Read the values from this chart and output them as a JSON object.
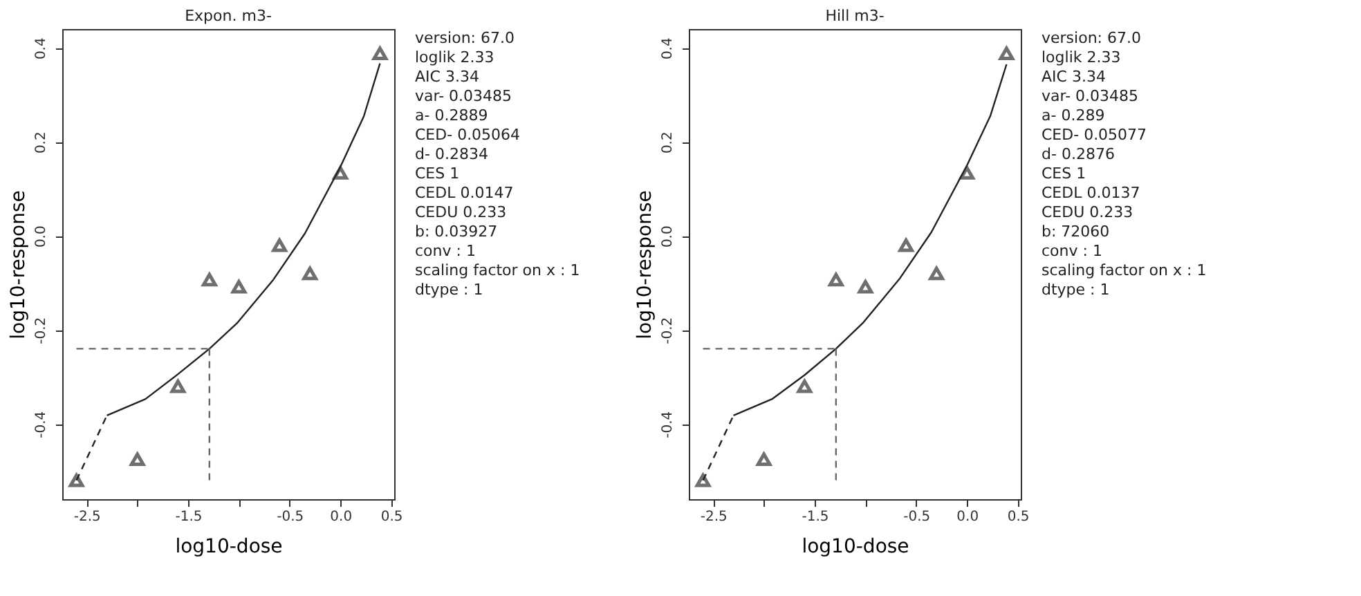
{
  "chart_data": [
    {
      "type": "scatter",
      "title": "Expon. m3-",
      "xlabel": "log10-dose",
      "ylabel": "log10-response",
      "xlim": [
        -2.74,
        0.53
      ],
      "ylim": [
        -0.56,
        0.44
      ],
      "xticks": [
        -2.5,
        {
          "value": -2.0,
          "label": null
        },
        -1.5,
        {
          "value": -1.0,
          "label": null
        },
        -0.5,
        {
          "value": 0.0,
          "label": "0.0"
        },
        0.5
      ],
      "yticks": [
        -0.4,
        -0.2,
        {
          "value": 0.0,
          "label": "0.0"
        },
        0.2,
        0.4
      ],
      "grid": false,
      "series": [
        {
          "type": "scatter",
          "marker": "triangle",
          "color": "#333333",
          "x": [
            -2.6,
            -2.0,
            -1.6,
            -1.29,
            -1.0,
            -0.6,
            -0.3,
            0.0,
            0.39
          ],
          "values": [
            -0.52,
            -0.475,
            -0.32,
            -0.093,
            -0.108,
            -0.02,
            -0.08,
            0.134,
            0.388
          ]
        },
        {
          "type": "line",
          "line_style": "solid",
          "color": "#222222",
          "x": [
            -2.3,
            -1.92,
            -1.6,
            -1.29,
            -1.02,
            -0.66,
            -0.35,
            0.0,
            0.23,
            0.39
          ],
          "values": [
            -0.382,
            -0.347,
            -0.294,
            -0.24,
            -0.186,
            -0.093,
            0.005,
            0.147,
            0.254,
            0.367
          ]
        },
        {
          "type": "line",
          "line_style": "dashed",
          "color": "#222222",
          "x": [
            -2.6,
            -2.3
          ],
          "values": [
            -0.52,
            -0.382
          ]
        },
        {
          "type": "line",
          "line_style": "dashed",
          "color": "#666666",
          "x": [
            -2.6,
            -1.29
          ],
          "values": [
            -0.24,
            -0.24
          ]
        },
        {
          "type": "line",
          "line_style": "dashed",
          "color": "#666666",
          "x": [
            -1.29,
            -1.29
          ],
          "values": [
            -0.24,
            -0.525
          ]
        }
      ],
      "annotations": [
        "version: 67.0",
        "loglik    2.33",
        "AIC    3.34",
        "var-    0.03485",
        "a-    0.2889",
        "CED-    0.05064",
        "d-    0.2834",
        "CES    1",
        "CEDL    0.0147",
        "CEDU    0.233",
        "b:  0.03927",
        "conv :  1",
        "scaling factor on x :  1",
        "dtype :  1"
      ]
    },
    {
      "type": "scatter",
      "title": "Hill m3-",
      "xlabel": "log10-dose",
      "ylabel": "log10-response",
      "xlim": [
        -2.74,
        0.53
      ],
      "ylim": [
        -0.56,
        0.44
      ],
      "xticks": [
        -2.5,
        {
          "value": -2.0,
          "label": null
        },
        -1.5,
        {
          "value": -1.0,
          "label": null
        },
        -0.5,
        {
          "value": 0.0,
          "label": "0.0"
        },
        0.5
      ],
      "yticks": [
        -0.4,
        -0.2,
        {
          "value": 0.0,
          "label": "0.0"
        },
        0.2,
        0.4
      ],
      "grid": false,
      "series": [
        {
          "type": "scatter",
          "marker": "triangle",
          "color": "#333333",
          "x": [
            -2.6,
            -2.0,
            -1.6,
            -1.29,
            -1.0,
            -0.6,
            -0.3,
            0.0,
            0.39
          ],
          "values": [
            -0.52,
            -0.475,
            -0.32,
            -0.093,
            -0.108,
            -0.02,
            -0.08,
            0.134,
            0.388
          ]
        },
        {
          "type": "line",
          "line_style": "solid",
          "color": "#222222",
          "x": [
            -2.3,
            -1.92,
            -1.6,
            -1.29,
            -1.02,
            -0.66,
            -0.35,
            0.0,
            0.23,
            0.39
          ],
          "values": [
            -0.382,
            -0.347,
            -0.296,
            -0.24,
            -0.184,
            -0.09,
            0.008,
            0.15,
            0.255,
            0.365
          ]
        },
        {
          "type": "line",
          "line_style": "dashed",
          "color": "#222222",
          "x": [
            -2.6,
            -2.3
          ],
          "values": [
            -0.52,
            -0.382
          ]
        },
        {
          "type": "line",
          "line_style": "dashed",
          "color": "#666666",
          "x": [
            -2.6,
            -1.29
          ],
          "values": [
            -0.24,
            -0.24
          ]
        },
        {
          "type": "line",
          "line_style": "dashed",
          "color": "#666666",
          "x": [
            -1.29,
            -1.29
          ],
          "values": [
            -0.24,
            -0.525
          ]
        }
      ],
      "annotations": [
        "version: 67.0",
        "loglik    2.33",
        "AIC    3.34",
        "var-    0.03485",
        "a-    0.289",
        "CED-    0.05077",
        "d-    0.2876",
        "CES    1",
        "CEDL    0.0137",
        "CEDU    0.233",
        "b:  72060",
        "conv :  1",
        "scaling factor on x :  1",
        "dtype :  1"
      ]
    }
  ]
}
